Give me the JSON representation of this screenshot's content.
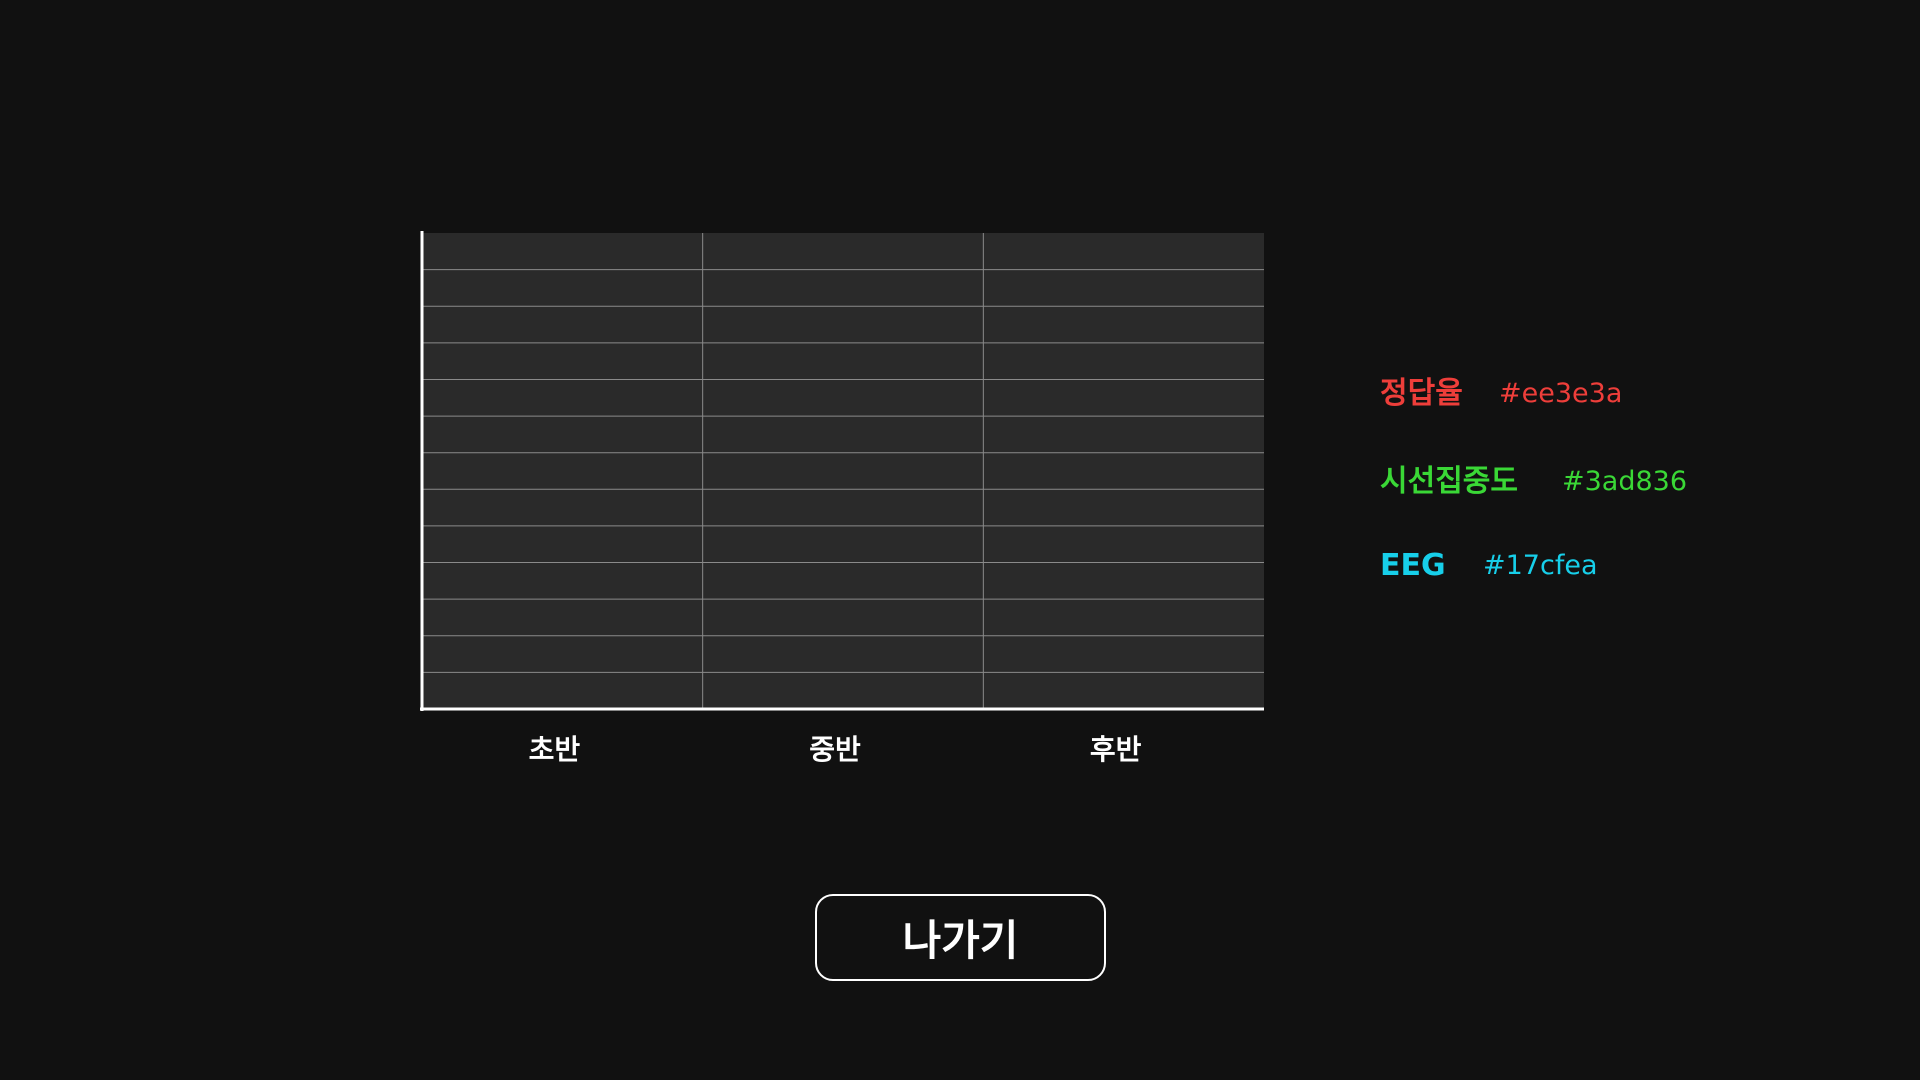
{
  "chart": {
    "categories": [
      "초반",
      "중반",
      "후반"
    ]
  },
  "legend": [
    {
      "label": "정답율",
      "code": "#ee3e3a"
    },
    {
      "label": "시선집중도",
      "code": "#3ad836"
    },
    {
      "label": "EEG",
      "code": "#17cfea"
    }
  ],
  "button": {
    "label": "나가기"
  }
}
